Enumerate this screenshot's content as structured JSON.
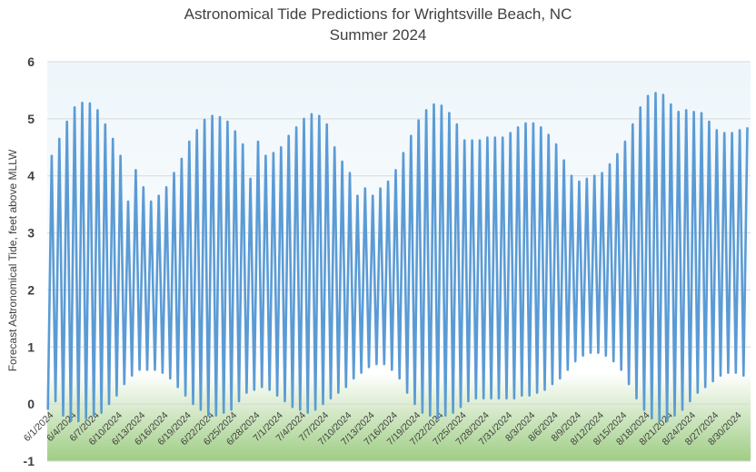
{
  "chart_data": {
    "type": "line",
    "title": "Astronomical Tide Predictions for Wrightsville Beach, NC",
    "subtitle": "Summer 2024",
    "xlabel": "",
    "ylabel": "Forecast Astronomical Tide, feet above MLLW",
    "ylim": [
      -1,
      6
    ],
    "yticks": [
      "-1",
      "0",
      "1",
      "2",
      "3",
      "4",
      "5",
      "6"
    ],
    "grid": true,
    "legend": "none",
    "line_color": "#5B9BD5",
    "background_gradient": [
      "#eef6fb",
      "#ffffff",
      "#9fcd84"
    ],
    "x_start": "6/1/2024",
    "x_end": "8/31/2024",
    "x_tick_labels": [
      "6/1/2024",
      "6/4/2024",
      "6/7/2024",
      "6/10/2024",
      "6/13/2024",
      "6/16/2024",
      "6/19/2024",
      "6/22/2024",
      "6/25/2024",
      "6/28/2024",
      "7/1/2024",
      "7/4/2024",
      "7/7/2024",
      "7/10/2024",
      "7/13/2024",
      "7/16/2024",
      "7/19/2024",
      "7/22/2024",
      "7/25/2024",
      "7/28/2024",
      "7/31/2024",
      "8/3/2024",
      "8/6/2024",
      "8/9/2024",
      "8/12/2024",
      "8/15/2024",
      "8/18/2024",
      "8/21/2024",
      "8/24/2024",
      "8/27/2024",
      "8/30/2024"
    ],
    "series": [
      {
        "points": [
          [
            "6/1/2024",
            -0.1
          ],
          [
            "6/1/2024",
            4.35
          ],
          [
            "6/2/2024",
            0.05
          ],
          [
            "6/2/2024",
            4.65
          ],
          [
            "6/3/2024",
            -0.2
          ],
          [
            "6/3/2024",
            4.95
          ],
          [
            "6/4/2024",
            -0.3
          ],
          [
            "6/4/2024",
            5.2
          ],
          [
            "6/5/2024",
            -0.3
          ],
          [
            "6/5/2024",
            5.28
          ],
          [
            "6/6/2024",
            -0.25
          ],
          [
            "6/6/2024",
            5.27
          ],
          [
            "6/7/2024",
            -0.2
          ],
          [
            "6/7/2024",
            5.15
          ],
          [
            "6/8/2024",
            -0.15
          ],
          [
            "6/8/2024",
            4.9
          ],
          [
            "6/9/2024",
            0.0
          ],
          [
            "6/9/2024",
            4.65
          ],
          [
            "6/10/2024",
            0.15
          ],
          [
            "6/10/2024",
            4.35
          ],
          [
            "6/11/2024",
            0.35
          ],
          [
            "6/11/2024",
            3.55
          ],
          [
            "6/12/2024",
            0.5
          ],
          [
            "6/12/2024",
            4.1
          ],
          [
            "6/13/2024",
            0.6
          ],
          [
            "6/13/2024",
            3.8
          ],
          [
            "6/14/2024",
            0.6
          ],
          [
            "6/14/2024",
            3.55
          ],
          [
            "6/15/2024",
            0.6
          ],
          [
            "6/15/2024",
            3.65
          ],
          [
            "6/16/2024",
            0.55
          ],
          [
            "6/16/2024",
            3.8
          ],
          [
            "6/17/2024",
            0.45
          ],
          [
            "6/17/2024",
            4.05
          ],
          [
            "6/18/2024",
            0.3
          ],
          [
            "6/18/2024",
            4.3
          ],
          [
            "6/19/2024",
            0.15
          ],
          [
            "6/19/2024",
            4.6
          ],
          [
            "6/20/2024",
            0.0
          ],
          [
            "6/20/2024",
            4.8
          ],
          [
            "6/21/2024",
            -0.1
          ],
          [
            "6/21/2024",
            4.98
          ],
          [
            "6/22/2024",
            -0.2
          ],
          [
            "6/22/2024",
            5.05
          ],
          [
            "6/23/2024",
            -0.2
          ],
          [
            "6/23/2024",
            5.03
          ],
          [
            "6/24/2024",
            -0.15
          ],
          [
            "6/24/2024",
            4.95
          ],
          [
            "6/25/2024",
            -0.1
          ],
          [
            "6/25/2024",
            4.78
          ],
          [
            "6/26/2024",
            0.05
          ],
          [
            "6/26/2024",
            4.55
          ],
          [
            "6/27/2024",
            0.2
          ],
          [
            "6/27/2024",
            3.95
          ],
          [
            "6/28/2024",
            0.25
          ],
          [
            "6/28/2024",
            4.6
          ],
          [
            "6/29/2024",
            0.3
          ],
          [
            "6/29/2024",
            4.35
          ],
          [
            "6/30/2024",
            0.25
          ],
          [
            "6/30/2024",
            4.4
          ],
          [
            "7/1/2024",
            0.15
          ],
          [
            "7/1/2024",
            4.5
          ],
          [
            "7/2/2024",
            0.05
          ],
          [
            "7/2/2024",
            4.7
          ],
          [
            "7/3/2024",
            -0.05
          ],
          [
            "7/3/2024",
            4.85
          ],
          [
            "7/4/2024",
            -0.1
          ],
          [
            "7/4/2024",
            5.0
          ],
          [
            "7/5/2024",
            -0.15
          ],
          [
            "7/5/2024",
            5.08
          ],
          [
            "7/6/2024",
            -0.1
          ],
          [
            "7/6/2024",
            5.05
          ],
          [
            "7/7/2024",
            0.0
          ],
          [
            "7/7/2024",
            4.9
          ],
          [
            "7/8/2024",
            0.1
          ],
          [
            "7/8/2024",
            4.5
          ],
          [
            "7/9/2024",
            0.2
          ],
          [
            "7/9/2024",
            4.25
          ],
          [
            "7/10/2024",
            0.3
          ],
          [
            "7/10/2024",
            4.05
          ],
          [
            "7/11/2024",
            0.45
          ],
          [
            "7/11/2024",
            3.65
          ],
          [
            "7/12/2024",
            0.55
          ],
          [
            "7/12/2024",
            3.78
          ],
          [
            "7/13/2024",
            0.65
          ],
          [
            "7/13/2024",
            3.65
          ],
          [
            "7/14/2024",
            0.7
          ],
          [
            "7/14/2024",
            3.78
          ],
          [
            "7/15/2024",
            0.7
          ],
          [
            "7/15/2024",
            3.9
          ],
          [
            "7/16/2024",
            0.6
          ],
          [
            "7/16/2024",
            4.1
          ],
          [
            "7/17/2024",
            0.45
          ],
          [
            "7/17/2024",
            4.4
          ],
          [
            "7/18/2024",
            0.2
          ],
          [
            "7/18/2024",
            4.7
          ],
          [
            "7/19/2024",
            0.0
          ],
          [
            "7/19/2024",
            4.97
          ],
          [
            "7/20/2024",
            -0.15
          ],
          [
            "7/20/2024",
            5.15
          ],
          [
            "7/21/2024",
            -0.2
          ],
          [
            "7/21/2024",
            5.25
          ],
          [
            "7/22/2024",
            -0.25
          ],
          [
            "7/22/2024",
            5.23
          ],
          [
            "7/23/2024",
            -0.2
          ],
          [
            "7/23/2024",
            5.1
          ],
          [
            "7/24/2024",
            -0.15
          ],
          [
            "7/24/2024",
            4.9
          ],
          [
            "7/25/2024",
            -0.05
          ],
          [
            "7/25/2024",
            4.62
          ],
          [
            "7/26/2024",
            0.05
          ],
          [
            "7/26/2024",
            4.62
          ],
          [
            "7/27/2024",
            0.1
          ],
          [
            "7/27/2024",
            4.62
          ],
          [
            "7/28/2024",
            0.1
          ],
          [
            "7/28/2024",
            4.67
          ],
          [
            "7/29/2024",
            0.1
          ],
          [
            "7/29/2024",
            4.67
          ],
          [
            "7/30/2024",
            0.1
          ],
          [
            "7/30/2024",
            4.67
          ],
          [
            "7/31/2024",
            0.1
          ],
          [
            "7/31/2024",
            4.75
          ],
          [
            "8/1/2024",
            0.1
          ],
          [
            "8/1/2024",
            4.85
          ],
          [
            "8/2/2024",
            0.15
          ],
          [
            "8/2/2024",
            4.92
          ],
          [
            "8/3/2024",
            0.15
          ],
          [
            "8/3/2024",
            4.92
          ],
          [
            "8/4/2024",
            0.2
          ],
          [
            "8/4/2024",
            4.85
          ],
          [
            "8/5/2024",
            0.25
          ],
          [
            "8/5/2024",
            4.72
          ],
          [
            "8/6/2024",
            0.35
          ],
          [
            "8/6/2024",
            4.55
          ],
          [
            "8/7/2024",
            0.45
          ],
          [
            "8/7/2024",
            4.27
          ],
          [
            "8/8/2024",
            0.6
          ],
          [
            "8/8/2024",
            4.0
          ],
          [
            "8/9/2024",
            0.75
          ],
          [
            "8/9/2024",
            3.9
          ],
          [
            "8/10/2024",
            0.85
          ],
          [
            "8/10/2024",
            3.95
          ],
          [
            "8/11/2024",
            0.9
          ],
          [
            "8/11/2024",
            4.0
          ],
          [
            "8/12/2024",
            0.9
          ],
          [
            "8/12/2024",
            4.05
          ],
          [
            "8/13/2024",
            0.85
          ],
          [
            "8/13/2024",
            4.2
          ],
          [
            "8/14/2024",
            0.75
          ],
          [
            "8/14/2024",
            4.38
          ],
          [
            "8/15/2024",
            0.6
          ],
          [
            "8/15/2024",
            4.6
          ],
          [
            "8/16/2024",
            0.35
          ],
          [
            "8/16/2024",
            4.9
          ],
          [
            "8/17/2024",
            0.1
          ],
          [
            "8/17/2024",
            5.2
          ],
          [
            "8/18/2024",
            -0.1
          ],
          [
            "8/18/2024",
            5.4
          ],
          [
            "8/19/2024",
            -0.25
          ],
          [
            "8/19/2024",
            5.45
          ],
          [
            "8/20/2024",
            -0.3
          ],
          [
            "8/20/2024",
            5.42
          ],
          [
            "8/21/2024",
            -0.3
          ],
          [
            "8/21/2024",
            5.25
          ],
          [
            "8/22/2024",
            -0.2
          ],
          [
            "8/22/2024",
            5.12
          ],
          [
            "8/23/2024",
            -0.1
          ],
          [
            "8/23/2024",
            5.15
          ],
          [
            "8/24/2024",
            0.05
          ],
          [
            "8/24/2024",
            5.12
          ],
          [
            "8/25/2024",
            0.2
          ],
          [
            "8/25/2024",
            5.1
          ],
          [
            "8/26/2024",
            0.3
          ],
          [
            "8/26/2024",
            4.95
          ],
          [
            "8/27/2024",
            0.4
          ],
          [
            "8/27/2024",
            4.8
          ],
          [
            "8/28/2024",
            0.5
          ],
          [
            "8/28/2024",
            4.75
          ],
          [
            "8/29/2024",
            0.55
          ],
          [
            "8/29/2024",
            4.75
          ],
          [
            "8/30/2024",
            0.55
          ],
          [
            "8/30/2024",
            4.8
          ],
          [
            "8/31/2024",
            0.5
          ],
          [
            "8/31/2024",
            4.85
          ]
        ]
      }
    ]
  }
}
